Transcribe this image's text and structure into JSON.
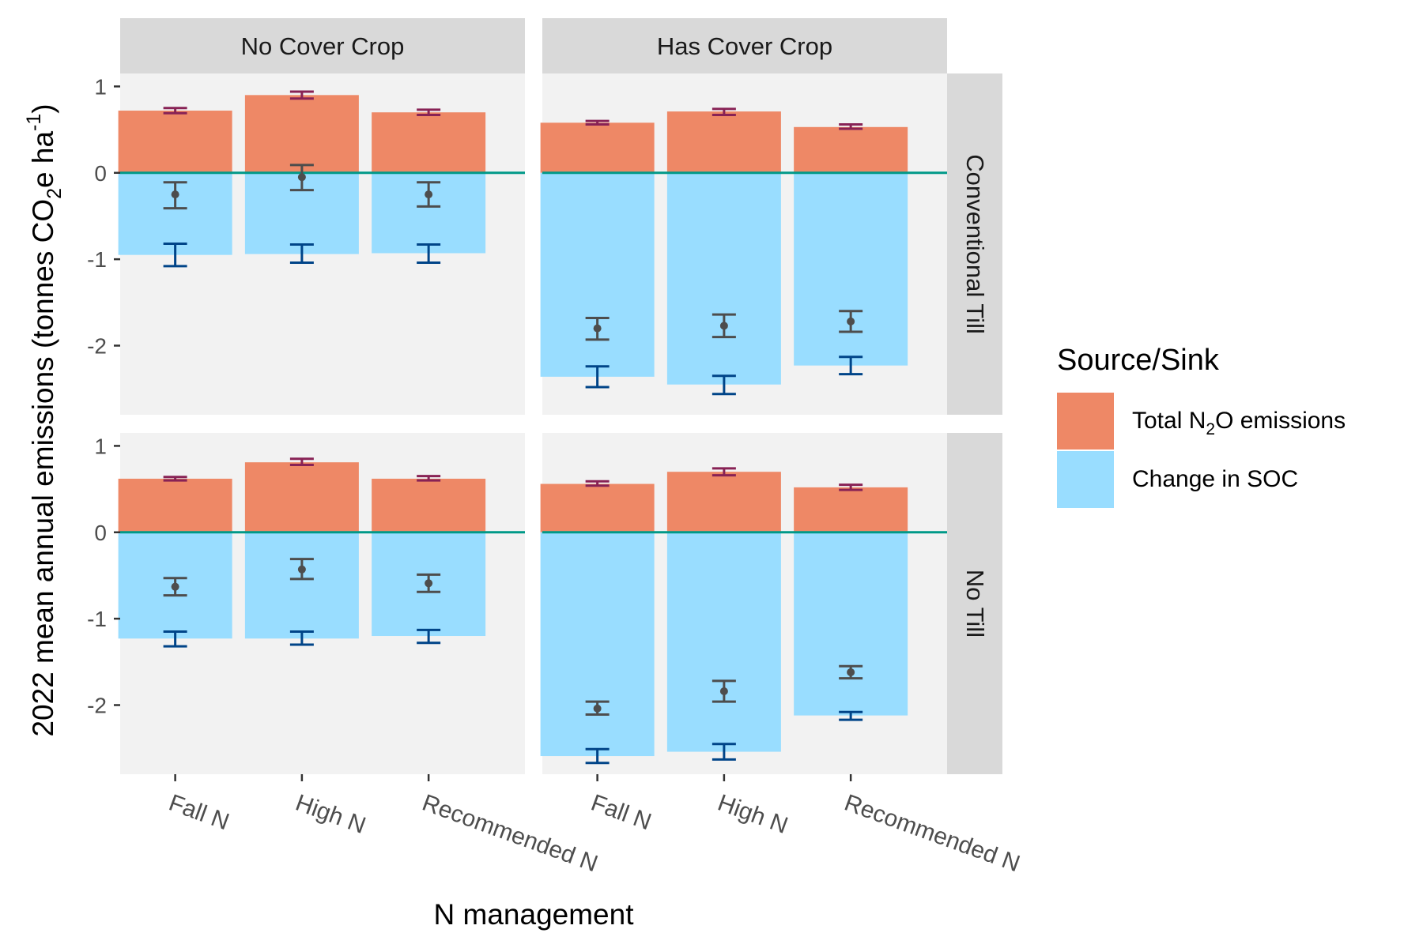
{
  "chart_data": {
    "type": "bar",
    "subtype": "faceted diverging stacked bar with error bars",
    "xlabel": "N management",
    "ylabel_main": "2022 mean annual emissions (tonnes CO",
    "ylabel_sub": "2",
    "ylabel_mid": "e ha",
    "ylabel_sup": "-1",
    "ylabel_end": ")",
    "ylim": [
      -2.8,
      1.15
    ],
    "yticks": [
      1,
      0,
      -1,
      -2
    ],
    "ytick_labels": [
      "1",
      "0",
      "-1",
      "-2"
    ],
    "categories": [
      "Fall N",
      "High N",
      "Recommended N"
    ],
    "col_facets": [
      "No Cover Crop",
      "Has Cover Crop"
    ],
    "row_facets": [
      "Conventional Till",
      "No Till"
    ],
    "legend": {
      "title": "Source/Sink",
      "position": "right",
      "items": [
        {
          "key": "n2o",
          "label_pre": "Total N",
          "label_sub": "2",
          "label_post": "O emissions",
          "color": "#EE8866"
        },
        {
          "key": "soc",
          "label_pre": "Change in SOC",
          "label_sub": "",
          "label_post": "",
          "color": "#99DDFF"
        }
      ]
    },
    "colors": {
      "n2o_bar": "#EE8866",
      "soc_bar": "#99DDFF",
      "n2o_errorbar": "#882255",
      "soc_errorbar": "#004488",
      "net_point": "#4D4D4D",
      "zero_line": "#009988",
      "panel_bg": "#F2F2F2",
      "strip_bg": "#D9D9D9"
    },
    "panels": [
      {
        "col": "No Cover Crop",
        "row": "Conventional Till",
        "n2o": [
          {
            "v": 0.72,
            "lo": 0.69,
            "hi": 0.75
          },
          {
            "v": 0.9,
            "lo": 0.86,
            "hi": 0.94
          },
          {
            "v": 0.7,
            "lo": 0.67,
            "hi": 0.73
          }
        ],
        "soc": [
          {
            "v": -0.95,
            "lo": -1.08,
            "hi": -0.82
          },
          {
            "v": -0.94,
            "lo": -1.04,
            "hi": -0.83
          },
          {
            "v": -0.93,
            "lo": -1.04,
            "hi": -0.83
          }
        ],
        "net": [
          {
            "v": -0.25,
            "lo": -0.41,
            "hi": -0.11
          },
          {
            "v": -0.05,
            "lo": -0.2,
            "hi": 0.09
          },
          {
            "v": -0.25,
            "lo": -0.39,
            "hi": -0.11
          }
        ]
      },
      {
        "col": "Has Cover Crop",
        "row": "Conventional Till",
        "n2o": [
          {
            "v": 0.58,
            "lo": 0.56,
            "hi": 0.6
          },
          {
            "v": 0.71,
            "lo": 0.67,
            "hi": 0.74
          },
          {
            "v": 0.53,
            "lo": 0.51,
            "hi": 0.56
          }
        ],
        "soc": [
          {
            "v": -2.36,
            "lo": -2.48,
            "hi": -2.24
          },
          {
            "v": -2.45,
            "lo": -2.56,
            "hi": -2.35
          },
          {
            "v": -2.23,
            "lo": -2.33,
            "hi": -2.13
          }
        ],
        "net": [
          {
            "v": -1.8,
            "lo": -1.93,
            "hi": -1.68
          },
          {
            "v": -1.77,
            "lo": -1.9,
            "hi": -1.64
          },
          {
            "v": -1.72,
            "lo": -1.84,
            "hi": -1.6
          }
        ]
      },
      {
        "col": "No Cover Crop",
        "row": "No Till",
        "n2o": [
          {
            "v": 0.62,
            "lo": 0.6,
            "hi": 0.64
          },
          {
            "v": 0.81,
            "lo": 0.78,
            "hi": 0.85
          },
          {
            "v": 0.62,
            "lo": 0.6,
            "hi": 0.65
          }
        ],
        "soc": [
          {
            "v": -1.23,
            "lo": -1.32,
            "hi": -1.15
          },
          {
            "v": -1.23,
            "lo": -1.3,
            "hi": -1.15
          },
          {
            "v": -1.2,
            "lo": -1.28,
            "hi": -1.13
          }
        ],
        "net": [
          {
            "v": -0.63,
            "lo": -0.73,
            "hi": -0.53
          },
          {
            "v": -0.43,
            "lo": -0.54,
            "hi": -0.31
          },
          {
            "v": -0.59,
            "lo": -0.69,
            "hi": -0.49
          }
        ]
      },
      {
        "col": "Has Cover Crop",
        "row": "No Till",
        "n2o": [
          {
            "v": 0.56,
            "lo": 0.54,
            "hi": 0.59
          },
          {
            "v": 0.7,
            "lo": 0.66,
            "hi": 0.74
          },
          {
            "v": 0.52,
            "lo": 0.49,
            "hi": 0.55
          }
        ],
        "soc": [
          {
            "v": -2.59,
            "lo": -2.67,
            "hi": -2.51
          },
          {
            "v": -2.54,
            "lo": -2.63,
            "hi": -2.45
          },
          {
            "v": -2.12,
            "lo": -2.17,
            "hi": -2.08
          }
        ],
        "net": [
          {
            "v": -2.04,
            "lo": -2.11,
            "hi": -1.96
          },
          {
            "v": -1.84,
            "lo": -1.96,
            "hi": -1.72
          },
          {
            "v": -1.62,
            "lo": -1.69,
            "hi": -1.55
          }
        ]
      }
    ]
  }
}
